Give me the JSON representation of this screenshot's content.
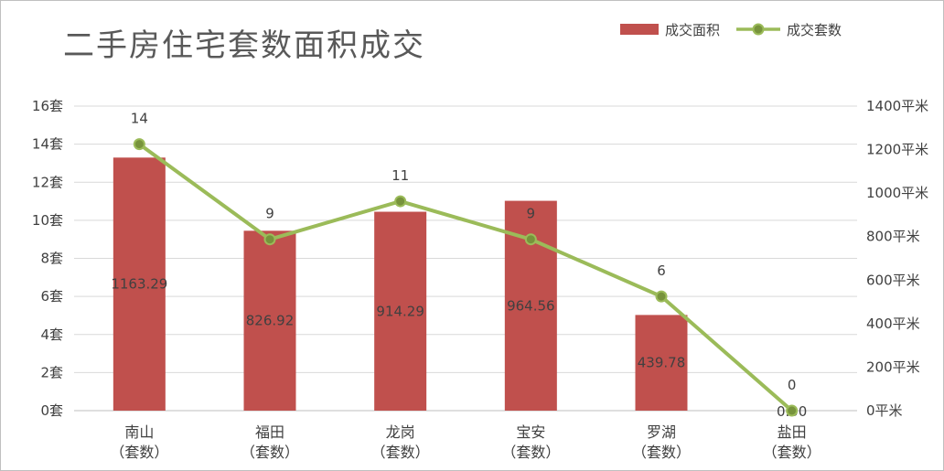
{
  "chart_data": {
    "type": "bar",
    "title": "二手房住宅套数面积成交",
    "categories": [
      [
        "南山",
        "（套数）"
      ],
      [
        "福田",
        "（套数）"
      ],
      [
        "龙岗",
        "（套数）"
      ],
      [
        "宝安",
        "（套数）"
      ],
      [
        "罗湖",
        "（套数）"
      ],
      [
        "盐田",
        "（套数）"
      ]
    ],
    "series": [
      {
        "name": "成交面积",
        "type": "bar",
        "axis": "right",
        "color": "#c0504d",
        "values": [
          1163.29,
          826.92,
          914.29,
          964.56,
          439.78,
          0.0
        ],
        "labels": [
          "1163.29",
          "826.92",
          "914.29",
          "964.56",
          "439.78",
          "0.00"
        ]
      },
      {
        "name": "成交套数",
        "type": "line",
        "axis": "left",
        "color": "#9bbb59",
        "values": [
          14,
          9,
          11,
          9,
          6,
          0
        ],
        "labels": [
          "14",
          "9",
          "11",
          "9",
          "6",
          "0"
        ]
      }
    ],
    "left_axis": {
      "ylim": [
        0,
        16
      ],
      "ticks": [
        "0套",
        "2套",
        "4套",
        "6套",
        "8套",
        "10套",
        "12套",
        "14套",
        "16套"
      ]
    },
    "right_axis": {
      "ylim": [
        0,
        1400
      ],
      "ticks": [
        "0平米",
        "200平米",
        "400平米",
        "600平米",
        "800平米",
        "1000平米",
        "1200平米",
        "1400平米"
      ]
    },
    "grid": true,
    "legend": "top-right"
  }
}
